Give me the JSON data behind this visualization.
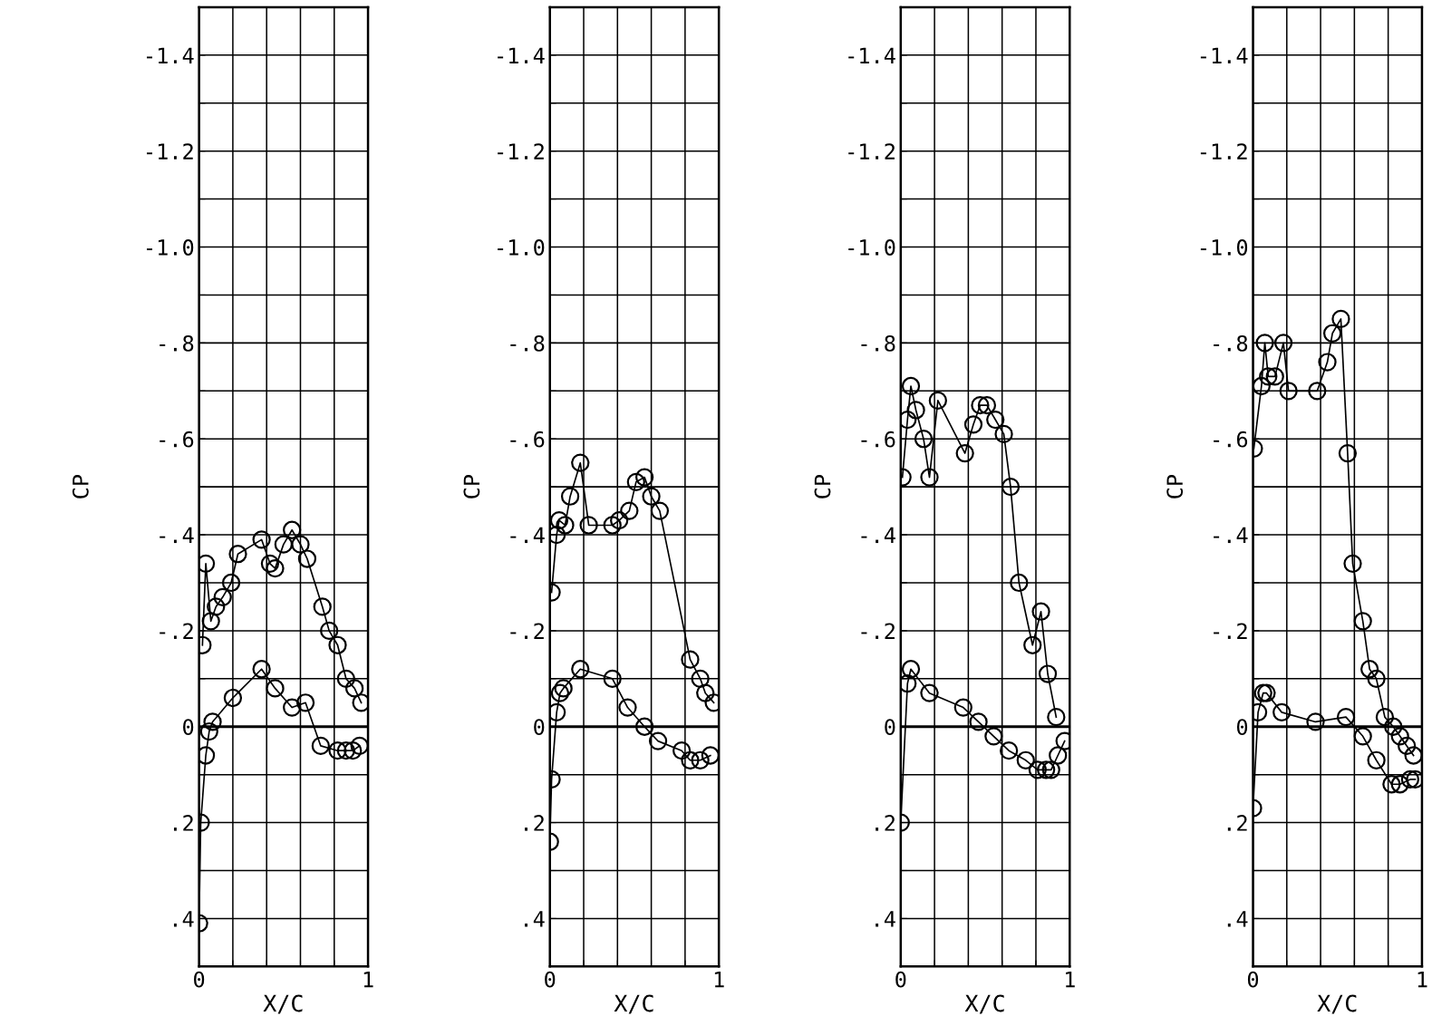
{
  "chart_data": [
    {
      "type": "line",
      "xlabel": "X/C",
      "ylabel": "CP",
      "xlim": [
        0,
        1
      ],
      "ylim": [
        0.5,
        -1.5
      ],
      "grid": true,
      "marker": "circle",
      "line_style": "solid",
      "xticks": [
        0,
        {
          "value": 0.2,
          "label": null
        },
        {
          "value": 0.4,
          "label": null
        },
        {
          "value": 0.6,
          "label": null
        },
        {
          "value": 0.8,
          "label": null
        },
        1
      ],
      "yticks": [
        {
          "value": -1.5,
          "label": null
        },
        {
          "value": -1.4,
          "label": "-1.4"
        },
        {
          "value": -1.3,
          "label": null
        },
        {
          "value": -1.2,
          "label": "-1.2"
        },
        {
          "value": -1.1,
          "label": null
        },
        {
          "value": -1.0,
          "label": "-1.0"
        },
        {
          "value": -0.9,
          "label": null
        },
        {
          "value": -0.8,
          "label": "-.8"
        },
        {
          "value": -0.7,
          "label": null
        },
        {
          "value": -0.6,
          "label": "-.6"
        },
        {
          "value": -0.5,
          "label": null
        },
        {
          "value": -0.4,
          "label": "-.4"
        },
        {
          "value": -0.3,
          "label": null
        },
        {
          "value": -0.2,
          "label": "-.2"
        },
        {
          "value": -0.1,
          "label": null
        },
        0,
        {
          "value": 0.1,
          "label": null
        },
        {
          "value": 0.2,
          "label": ".2"
        },
        {
          "value": 0.3,
          "label": null
        },
        {
          "value": 0.4,
          "label": ".4"
        }
      ],
      "ref_lines": [
        {
          "axis": "y",
          "value": 0,
          "color": "#000000"
        }
      ],
      "series": [
        {
          "color": "#000000",
          "x": [
            0.02,
            0.04,
            0.07,
            0.1,
            0.14,
            0.19,
            0.23,
            0.37,
            0.42,
            0.45,
            0.5,
            0.55,
            0.6,
            0.64,
            0.73,
            0.77,
            0.82,
            0.87,
            0.92,
            0.96
          ],
          "values": [
            -0.17,
            -0.34,
            -0.22,
            -0.25,
            -0.27,
            -0.3,
            -0.36,
            -0.39,
            -0.34,
            -0.33,
            -0.38,
            -0.41,
            -0.38,
            -0.35,
            -0.25,
            -0.2,
            -0.17,
            -0.1,
            -0.08,
            -0.05
          ]
        },
        {
          "color": "#000000",
          "x": [
            0,
            0.01,
            0.04,
            0.06,
            0.08,
            0.2,
            0.37,
            0.45,
            0.55,
            0.63,
            0.72,
            0.82,
            0.87,
            0.91,
            0.95
          ],
          "values": [
            0.41,
            0.2,
            0.06,
            0.01,
            -0.01,
            -0.06,
            -0.12,
            -0.08,
            -0.04,
            -0.05,
            0.04,
            0.05,
            0.05,
            0.05,
            0.04
          ]
        }
      ]
    },
    {
      "type": "line",
      "xlabel": "X/C",
      "ylabel": "CP",
      "xlim": [
        0,
        1
      ],
      "ylim": [
        0.5,
        -1.5
      ],
      "grid": true,
      "marker": "circle",
      "line_style": "solid",
      "xticks": [
        0,
        {
          "value": 0.2,
          "label": null
        },
        {
          "value": 0.4,
          "label": null
        },
        {
          "value": 0.6,
          "label": null
        },
        {
          "value": 0.8,
          "label": null
        },
        1
      ],
      "yticks": [
        {
          "value": -1.5,
          "label": null
        },
        {
          "value": -1.4,
          "label": "-1.4"
        },
        {
          "value": -1.3,
          "label": null
        },
        {
          "value": -1.2,
          "label": "-1.2"
        },
        {
          "value": -1.1,
          "label": null
        },
        {
          "value": -1.0,
          "label": "-1.0"
        },
        {
          "value": -0.9,
          "label": null
        },
        {
          "value": -0.8,
          "label": "-.8"
        },
        {
          "value": -0.7,
          "label": null
        },
        {
          "value": -0.6,
          "label": "-.6"
        },
        {
          "value": -0.5,
          "label": null
        },
        {
          "value": -0.4,
          "label": "-.4"
        },
        {
          "value": -0.3,
          "label": null
        },
        {
          "value": -0.2,
          "label": "-.2"
        },
        {
          "value": -0.1,
          "label": null
        },
        0,
        {
          "value": 0.1,
          "label": null
        },
        {
          "value": 0.2,
          "label": ".2"
        },
        {
          "value": 0.3,
          "label": null
        },
        {
          "value": 0.4,
          "label": ".4"
        }
      ],
      "ref_lines": [
        {
          "axis": "y",
          "value": 0,
          "color": "#000000"
        }
      ],
      "series": [
        {
          "color": "#000000",
          "x": [
            0.01,
            0.04,
            0.055,
            0.09,
            0.12,
            0.18,
            0.23,
            0.37,
            0.41,
            0.47,
            0.51,
            0.56,
            0.6,
            0.65,
            0.83,
            0.89,
            0.92,
            0.97
          ],
          "values": [
            -0.28,
            -0.4,
            -0.43,
            -0.42,
            -0.48,
            -0.55,
            -0.42,
            -0.42,
            -0.43,
            -0.45,
            -0.51,
            -0.52,
            -0.48,
            -0.45,
            -0.14,
            -0.1,
            -0.07,
            -0.05
          ]
        },
        {
          "color": "#000000",
          "x": [
            0,
            0.01,
            0.04,
            0.06,
            0.08,
            0.18,
            0.37,
            0.46,
            0.56,
            0.64,
            0.78,
            0.83,
            0.89,
            0.95
          ],
          "values": [
            0.24,
            0.11,
            -0.03,
            -0.07,
            -0.08,
            -0.12,
            -0.1,
            -0.04,
            0.0,
            0.03,
            0.05,
            0.07,
            0.07,
            0.06
          ]
        }
      ]
    },
    {
      "type": "line",
      "xlabel": "X/C",
      "ylabel": "CP",
      "xlim": [
        0,
        1
      ],
      "ylim": [
        0.5,
        -1.5
      ],
      "grid": true,
      "marker": "circle",
      "line_style": "solid",
      "xticks": [
        0,
        {
          "value": 0.2,
          "label": null
        },
        {
          "value": 0.4,
          "label": null
        },
        {
          "value": 0.6,
          "label": null
        },
        {
          "value": 0.8,
          "label": null
        },
        1
      ],
      "yticks": [
        {
          "value": -1.5,
          "label": null
        },
        {
          "value": -1.4,
          "label": "-1.4"
        },
        {
          "value": -1.3,
          "label": null
        },
        {
          "value": -1.2,
          "label": "-1.2"
        },
        {
          "value": -1.1,
          "label": null
        },
        {
          "value": -1.0,
          "label": "-1.0"
        },
        {
          "value": -0.9,
          "label": null
        },
        {
          "value": -0.8,
          "label": "-.8"
        },
        {
          "value": -0.7,
          "label": null
        },
        {
          "value": -0.6,
          "label": "-.6"
        },
        {
          "value": -0.5,
          "label": null
        },
        {
          "value": -0.4,
          "label": "-.4"
        },
        {
          "value": -0.3,
          "label": null
        },
        {
          "value": -0.2,
          "label": "-.2"
        },
        {
          "value": -0.1,
          "label": null
        },
        0,
        {
          "value": 0.1,
          "label": null
        },
        {
          "value": 0.2,
          "label": ".2"
        },
        {
          "value": 0.3,
          "label": null
        },
        {
          "value": 0.4,
          "label": ".4"
        }
      ],
      "ref_lines": [
        {
          "axis": "y",
          "value": 0,
          "color": "#000000"
        }
      ],
      "series": [
        {
          "color": "#000000",
          "x": [
            0.01,
            0.04,
            0.06,
            0.09,
            0.135,
            0.17,
            0.22,
            0.38,
            0.43,
            0.47,
            0.51,
            0.56,
            0.61,
            0.65,
            0.7,
            0.78,
            0.83,
            0.87,
            0.92
          ],
          "values": [
            -0.52,
            -0.64,
            -0.71,
            -0.66,
            -0.6,
            -0.52,
            -0.68,
            -0.57,
            -0.63,
            -0.67,
            -0.67,
            -0.64,
            -0.61,
            -0.5,
            -0.3,
            -0.17,
            -0.24,
            -0.11,
            -0.02
          ]
        },
        {
          "color": "#000000",
          "x": [
            0,
            0.04,
            0.06,
            0.17,
            0.37,
            0.46,
            0.55,
            0.64,
            0.74,
            0.81,
            0.86,
            0.89,
            0.93,
            0.97
          ],
          "values": [
            0.2,
            -0.09,
            -0.12,
            -0.07,
            -0.04,
            -0.01,
            0.02,
            0.05,
            0.07,
            0.09,
            0.09,
            0.09,
            0.06,
            0.03
          ]
        }
      ]
    },
    {
      "type": "line",
      "xlabel": "X/C",
      "ylabel": "CP",
      "xlim": [
        0,
        1
      ],
      "ylim": [
        0.5,
        -1.5
      ],
      "grid": true,
      "marker": "circle",
      "line_style": "solid",
      "xticks": [
        0,
        {
          "value": 0.2,
          "label": null
        },
        {
          "value": 0.4,
          "label": null
        },
        {
          "value": 0.6,
          "label": null
        },
        {
          "value": 0.8,
          "label": null
        },
        1
      ],
      "yticks": [
        {
          "value": -1.5,
          "label": null
        },
        {
          "value": -1.4,
          "label": "-1.4"
        },
        {
          "value": -1.3,
          "label": null
        },
        {
          "value": -1.2,
          "label": "-1.2"
        },
        {
          "value": -1.1,
          "label": null
        },
        {
          "value": -1.0,
          "label": "-1.0"
        },
        {
          "value": -0.9,
          "label": null
        },
        {
          "value": -0.8,
          "label": "-.8"
        },
        {
          "value": -0.7,
          "label": null
        },
        {
          "value": -0.6,
          "label": "-.6"
        },
        {
          "value": -0.5,
          "label": null
        },
        {
          "value": -0.4,
          "label": "-.4"
        },
        {
          "value": -0.3,
          "label": null
        },
        {
          "value": -0.2,
          "label": "-.2"
        },
        {
          "value": -0.1,
          "label": null
        },
        0,
        {
          "value": 0.1,
          "label": null
        },
        {
          "value": 0.2,
          "label": ".2"
        },
        {
          "value": 0.3,
          "label": null
        },
        {
          "value": 0.4,
          "label": ".4"
        }
      ],
      "ref_lines": [
        {
          "axis": "y",
          "value": 0,
          "color": "#000000"
        }
      ],
      "series": [
        {
          "color": "#000000",
          "x": [
            0.005,
            0.05,
            0.07,
            0.09,
            0.13,
            0.18,
            0.21,
            0.38,
            0.44,
            0.47,
            0.52,
            0.56,
            0.59,
            0.65,
            0.69,
            0.73,
            0.78,
            0.83,
            0.87,
            0.91,
            0.95
          ],
          "values": [
            -0.58,
            -0.71,
            -0.8,
            -0.73,
            -0.73,
            -0.8,
            -0.7,
            -0.7,
            -0.76,
            -0.82,
            -0.85,
            -0.57,
            -0.34,
            -0.22,
            -0.12,
            -0.1,
            -0.02,
            0.0,
            0.02,
            0.04,
            0.06
          ]
        },
        {
          "color": "#000000",
          "x": [
            0,
            0.03,
            0.06,
            0.08,
            0.17,
            0.37,
            0.55,
            0.65,
            0.73,
            0.82,
            0.87,
            0.93,
            0.96
          ],
          "values": [
            0.17,
            -0.03,
            -0.07,
            -0.07,
            -0.03,
            -0.01,
            -0.02,
            0.02,
            0.07,
            0.12,
            0.12,
            0.11,
            0.11
          ]
        }
      ]
    }
  ]
}
